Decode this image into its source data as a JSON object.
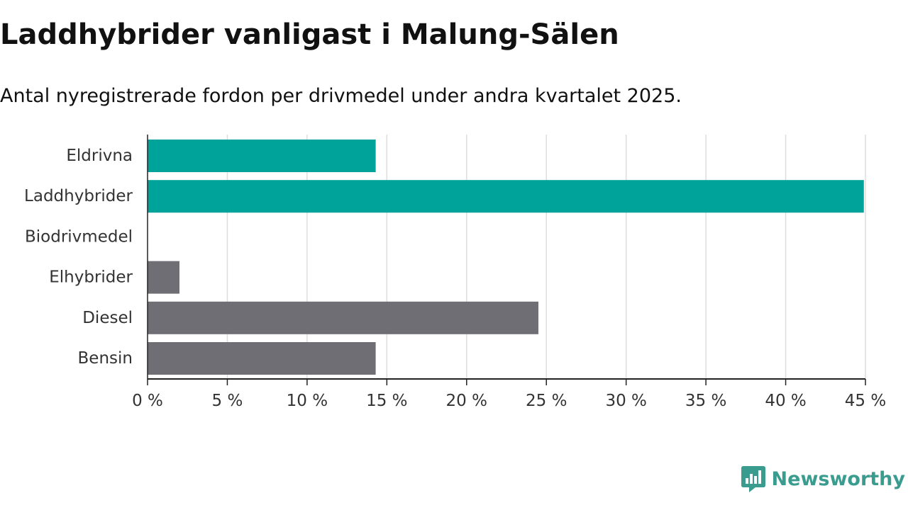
{
  "chart_data": {
    "type": "bar",
    "orientation": "horizontal",
    "title": "Laddhybrider vanligast i Malung-Sälen",
    "subtitle": "Antal nyregistrerade fordon per drivmedel under andra kvartalet 2025.",
    "categories": [
      "Eldrivna",
      "Laddhybrider",
      "Biodrivmedel",
      "Elhybrider",
      "Diesel",
      "Bensin"
    ],
    "values": [
      14.3,
      44.9,
      0,
      2.0,
      24.5,
      14.3
    ],
    "colors": [
      "#00a39a",
      "#00a39a",
      "#6f6e75",
      "#6f6e75",
      "#6f6e75",
      "#6f6e75"
    ],
    "xlim": [
      0,
      45
    ],
    "xticks": [
      0,
      5,
      10,
      15,
      20,
      25,
      30,
      35,
      40,
      45
    ],
    "xtick_labels": [
      "0 %",
      "5 %",
      "10 %",
      "15 %",
      "20 %",
      "25 %",
      "30 %",
      "35 %",
      "40 %",
      "45 %"
    ],
    "xlabel": "",
    "ylabel": "",
    "grid": true,
    "legend": "none"
  },
  "branding": {
    "logo_text": "Newsworthy",
    "logo_icon": "newsworthy-chart-icon",
    "logo_color": "#3a9c8f"
  },
  "colors": {
    "grid": "#dddddd",
    "axis": "#222222",
    "label": "#333333"
  }
}
